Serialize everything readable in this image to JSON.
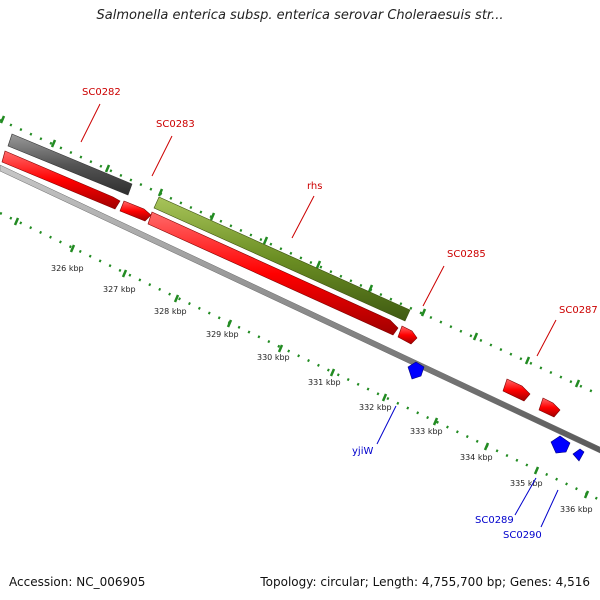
{
  "title": "Salmonella enterica subsp. enterica serovar Choleraesuis str...",
  "footer": {
    "accession": "Accession: NC_006905",
    "topology": "Topology: circular; Length: 4,755,700 bp; Genes: 4,516"
  },
  "colors": {
    "forward_gene": "#ff0000",
    "reverse_gene": "#0000ff",
    "rna_gene": "#6b8e23",
    "other_feature": "#555555",
    "backbone": "#8c8c8c",
    "tick": "#228b22",
    "label_forward": "#cc0000",
    "label_reverse": "#0000cc"
  },
  "kbp_labels": [
    "326 kbp",
    "327 kbp",
    "328 kbp",
    "329 kbp",
    "330 kbp",
    "331 kbp",
    "332 kbp",
    "333 kbp",
    "334 kbp",
    "335 kbp",
    "336 kbp"
  ],
  "gene_labels": [
    {
      "text": "SC0282",
      "strand": "forward"
    },
    {
      "text": "SC0283",
      "strand": "forward"
    },
    {
      "text": "rhs",
      "strand": "forward"
    },
    {
      "text": "SC0285",
      "strand": "forward"
    },
    {
      "text": "SC0287",
      "strand": "forward"
    },
    {
      "text": "yjiW",
      "strand": "reverse"
    },
    {
      "text": "SC0289",
      "strand": "reverse"
    },
    {
      "text": "SC0290",
      "strand": "reverse"
    }
  ]
}
